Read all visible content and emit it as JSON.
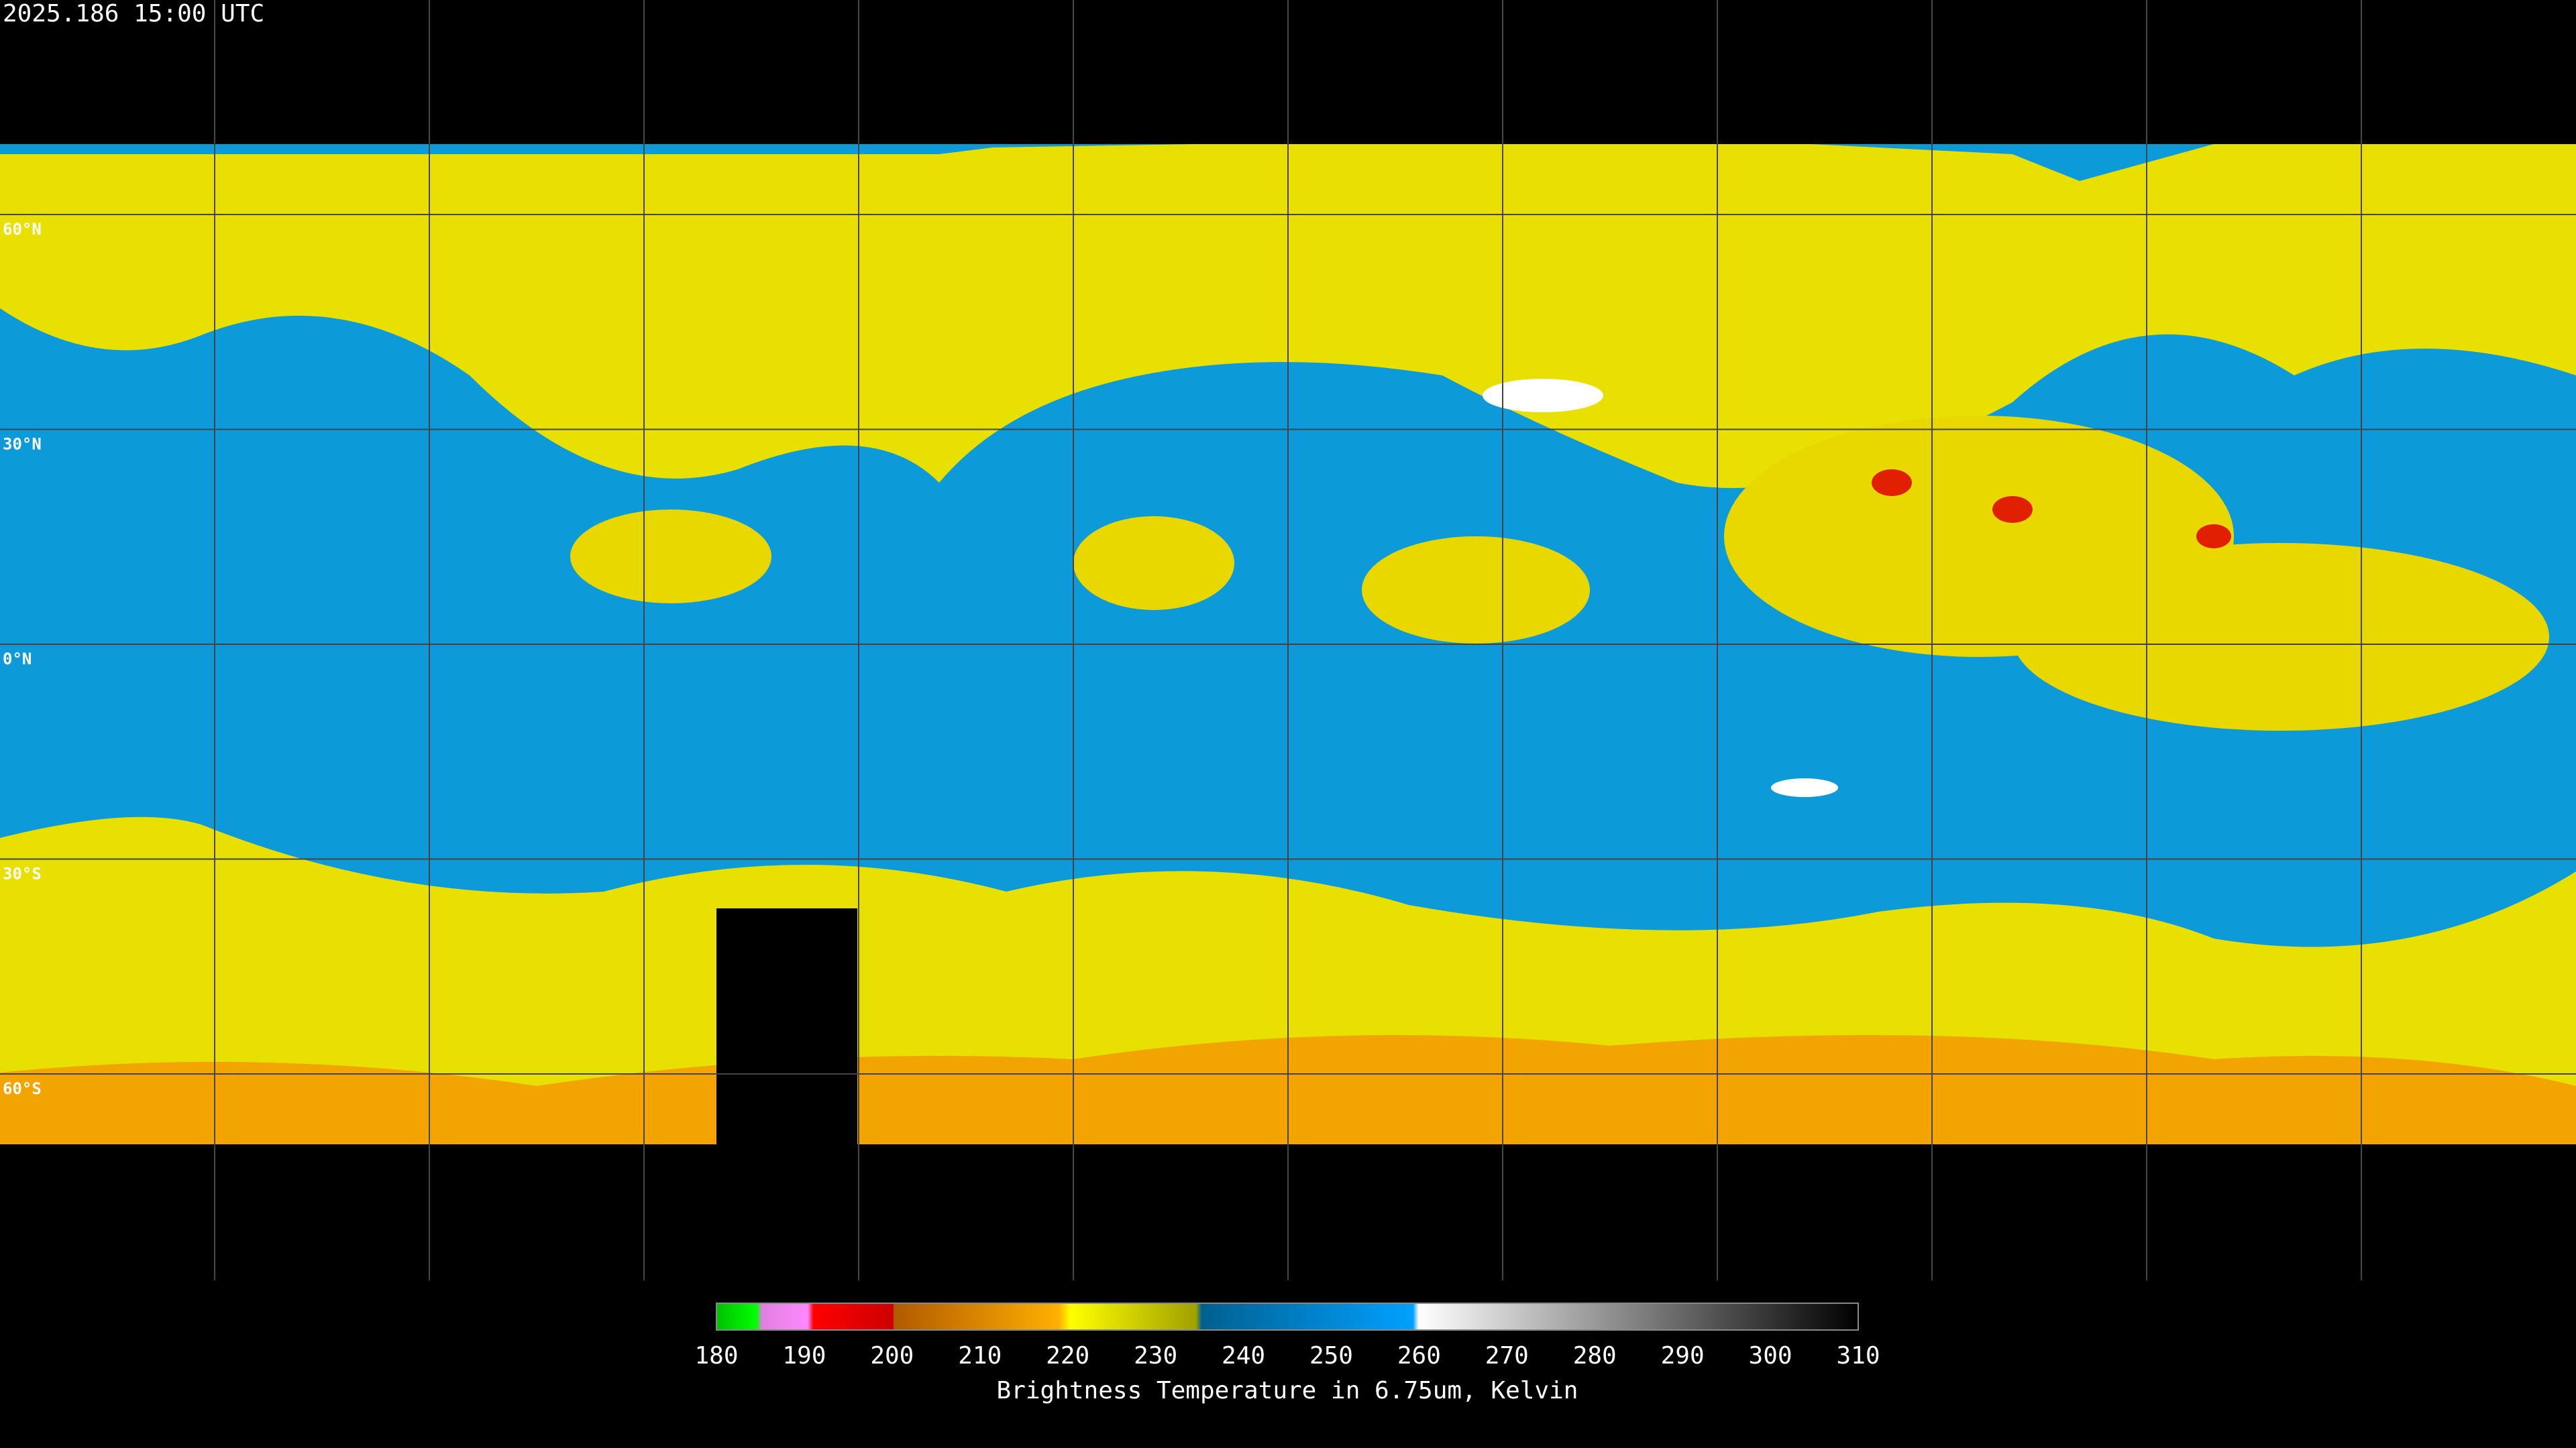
{
  "header": {
    "timestamp": "2025.186 15:00 UTC"
  },
  "map": {
    "lat_labels": [
      "60°N",
      "30°N",
      "0°N",
      "30°S",
      "60°S"
    ]
  },
  "colorbar": {
    "ticks": [
      180,
      190,
      200,
      210,
      220,
      230,
      240,
      250,
      260,
      270,
      280,
      290,
      300,
      310
    ],
    "label": "Brightness Temperature in 6.75um, Kelvin"
  }
}
